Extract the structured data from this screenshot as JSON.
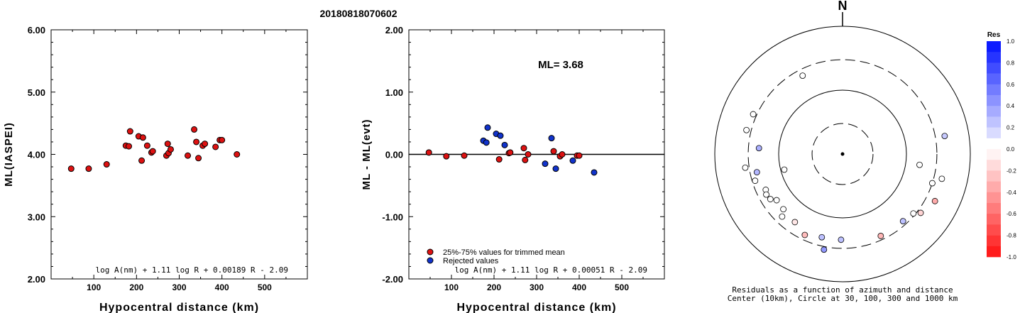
{
  "header": {
    "event_id": "20180818070602"
  },
  "chart_data": [
    {
      "type": "scatter",
      "xlabel": "Hypocentral distance (km)",
      "ylabel": "ML(IASPEI)",
      "xlim": [
        0,
        600
      ],
      "ylim": [
        2.0,
        6.0
      ],
      "x_ticks": [
        "100",
        "200",
        "300",
        "400",
        "500"
      ],
      "y_ticks": [
        "2.00",
        "3.00",
        "4.00",
        "5.00",
        "6.00"
      ],
      "formula": "log A(nm) + 1.11 log R + 0.00189 R - 2.09",
      "point_color": "#dd1111",
      "points": [
        [
          47,
          3.77
        ],
        [
          88,
          3.77
        ],
        [
          130,
          3.84
        ],
        [
          175,
          4.14
        ],
        [
          182,
          4.13
        ],
        [
          185,
          4.37
        ],
        [
          205,
          4.29
        ],
        [
          212,
          3.9
        ],
        [
          215,
          4.27
        ],
        [
          225,
          4.14
        ],
        [
          235,
          4.03
        ],
        [
          238,
          4.05
        ],
        [
          270,
          3.98
        ],
        [
          273,
          4.17
        ],
        [
          275,
          4.02
        ],
        [
          280,
          4.08
        ],
        [
          320,
          3.98
        ],
        [
          335,
          4.4
        ],
        [
          340,
          4.2
        ],
        [
          345,
          3.94
        ],
        [
          355,
          4.14
        ],
        [
          360,
          4.17
        ],
        [
          385,
          4.12
        ],
        [
          395,
          4.23
        ],
        [
          400,
          4.23
        ],
        [
          435,
          4.0
        ]
      ]
    },
    {
      "type": "scatter",
      "xlabel": "Hypocentral distance (km)",
      "ylabel": "ML - ML(evt)",
      "xlim": [
        0,
        600
      ],
      "ylim": [
        -2.0,
        2.0
      ],
      "x_ticks": [
        "100",
        "200",
        "300",
        "400",
        "500"
      ],
      "y_ticks": [
        "-2.00",
        "-1.00",
        "0.00",
        "1.00",
        "2.00"
      ],
      "magnitude_label": "ML= 3.68",
      "formula": "log A(nm) + 1.11 log R + 0.00051 R - 2.09",
      "legend": [
        "25%-75% values for trimmed mean",
        "Rejected values"
      ],
      "colors": {
        "trimmed": "#dd1111",
        "rejected": "#1133cc"
      },
      "series": [
        {
          "name": "25%-75% values for trimmed mean",
          "points": [
            [
              47,
              0.03
            ],
            [
              88,
              -0.03
            ],
            [
              130,
              -0.02
            ],
            [
              212,
              -0.08
            ],
            [
              235,
              0.02
            ],
            [
              238,
              0.03
            ],
            [
              270,
              0.1
            ],
            [
              273,
              -0.09
            ],
            [
              280,
              0.0
            ],
            [
              340,
              0.05
            ],
            [
              355,
              -0.03
            ],
            [
              360,
              0.0
            ],
            [
              395,
              -0.02
            ],
            [
              400,
              -0.02
            ]
          ]
        },
        {
          "name": "Rejected values",
          "points": [
            [
              175,
              0.22
            ],
            [
              182,
              0.19
            ],
            [
              185,
              0.43
            ],
            [
              205,
              0.33
            ],
            [
              215,
              0.3
            ],
            [
              225,
              0.15
            ],
            [
              320,
              -0.15
            ],
            [
              335,
              0.26
            ],
            [
              345,
              -0.23
            ],
            [
              385,
              -0.1
            ],
            [
              435,
              -0.29
            ]
          ]
        }
      ]
    },
    {
      "type": "polar-scatter",
      "north_label": "N",
      "caption_line1": "Residuals as a function of azimuth and distance",
      "caption_line2": "Center (10km), Circle at 30, 100, 300 and 1000 km",
      "rings": [
        {
          "distance_km": 30,
          "style": "dashed"
        },
        {
          "distance_km": 100,
          "style": "solid"
        },
        {
          "distance_km": 300,
          "style": "dashed"
        },
        {
          "distance_km": 1000,
          "style": "solid"
        }
      ],
      "colorbar": {
        "title": "Res",
        "ticks": [
          "1.0",
          "0.8",
          "0.6",
          "0.4",
          "0.2",
          "0.0",
          "-0.2",
          "-0.4",
          "-0.6",
          "-0.8",
          "-1.0"
        ],
        "positive_color": "#0010ff",
        "negative_color": "#ff1010"
      },
      "stations": [
        {
          "azimuth_deg": 333,
          "distance_km": 238,
          "residual": 0.03
        },
        {
          "azimuth_deg": 294,
          "distance_km": 340,
          "residual": 0.0
        },
        {
          "azimuth_deg": 284,
          "distance_km": 355,
          "residual": 0.0
        },
        {
          "azimuth_deg": 274,
          "distance_km": 205,
          "residual": 0.33
        },
        {
          "azimuth_deg": 262,
          "distance_km": 345,
          "residual": -0.01
        },
        {
          "azimuth_deg": 258,
          "distance_km": 235,
          "residual": 0.3
        },
        {
          "azimuth_deg": 253,
          "distance_km": 270,
          "residual": 0.0
        },
        {
          "azimuth_deg": 255,
          "distance_km": 88,
          "residual": 0.0
        },
        {
          "azimuth_deg": 245,
          "distance_km": 212,
          "residual": 0.0
        },
        {
          "azimuth_deg": 242,
          "distance_km": 225,
          "residual": 0.0
        },
        {
          "azimuth_deg": 238,
          "distance_km": 215,
          "residual": 0.0
        },
        {
          "azimuth_deg": 235,
          "distance_km": 182,
          "residual": 0.0
        },
        {
          "azimuth_deg": 227,
          "distance_km": 185,
          "residual": 0.0
        },
        {
          "azimuth_deg": 224,
          "distance_km": 230,
          "residual": 0.0
        },
        {
          "azimuth_deg": 215,
          "distance_km": 200,
          "residual": -0.1
        },
        {
          "azimuth_deg": 205,
          "distance_km": 250,
          "residual": -0.28
        },
        {
          "azimuth_deg": 194,
          "distance_km": 220,
          "residual": 0.26
        },
        {
          "azimuth_deg": 191,
          "distance_km": 335,
          "residual": 0.43
        },
        {
          "azimuth_deg": 181,
          "distance_km": 220,
          "residual": 0.26
        },
        {
          "azimuth_deg": 155,
          "distance_km": 260,
          "residual": -0.3
        },
        {
          "azimuth_deg": 138,
          "distance_km": 260,
          "residual": 0.26
        },
        {
          "azimuth_deg": 130,
          "distance_km": 280,
          "residual": 0.0
        },
        {
          "azimuth_deg": 127,
          "distance_km": 340,
          "residual": -0.18
        },
        {
          "azimuth_deg": 117,
          "distance_km": 420,
          "residual": -0.35
        },
        {
          "azimuth_deg": 108,
          "distance_km": 300,
          "residual": 0.0
        },
        {
          "azimuth_deg": 104,
          "distance_km": 400,
          "residual": 0.0
        },
        {
          "azimuth_deg": 98,
          "distance_km": 165,
          "residual": 0.0
        },
        {
          "azimuth_deg": 80,
          "distance_km": 420,
          "residual": 0.22
        }
      ]
    }
  ]
}
